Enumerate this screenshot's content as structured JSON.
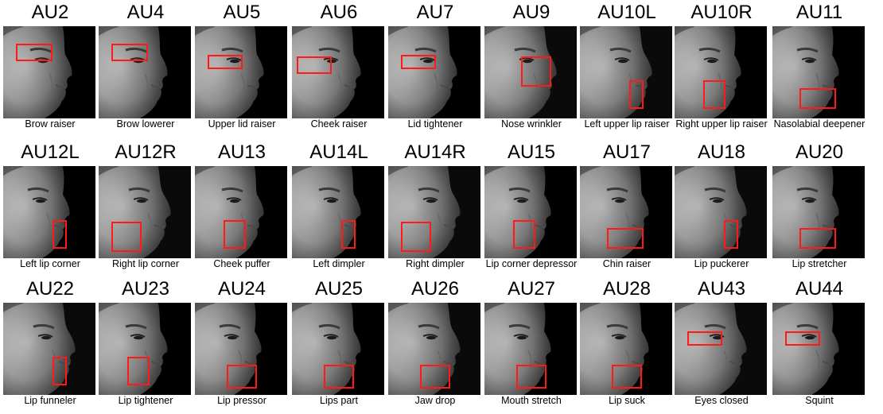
{
  "rows": [
    [
      {
        "au": "AU2",
        "label": "Brow raiser",
        "box": "brow",
        "face": 0
      },
      {
        "au": "AU4",
        "label": "Brow lowerer",
        "box": "brow",
        "face": 0
      },
      {
        "au": "AU5",
        "label": "Upper lid raiser",
        "box": "eye",
        "face": 0
      },
      {
        "au": "AU6",
        "label": "Cheek raiser",
        "box": "cheek",
        "face": 0
      },
      {
        "au": "AU7",
        "label": "Lid tightener",
        "box": "eye",
        "face": 0
      },
      {
        "au": "AU9",
        "label": "Nose wrinkler",
        "box": "nose",
        "face": 1
      },
      {
        "au": "AU10L",
        "label": "Left upper lip raiser",
        "box": "lipL",
        "face": 1
      },
      {
        "au": "AU10R",
        "label": "Right upper lip raiser",
        "box": "lipR",
        "face": 2
      },
      {
        "au": "AU11",
        "label": "Nasolabial deepener",
        "box": "mouthW",
        "face": 2
      }
    ],
    [
      {
        "au": "AU12L",
        "label": "Left lip corner",
        "box": "lipL",
        "face": 2
      },
      {
        "au": "AU12R",
        "label": "Right lip corner",
        "box": "cheekL",
        "face": 1
      },
      {
        "au": "AU13",
        "label": "Cheek puffer",
        "box": "lipR",
        "face": 0
      },
      {
        "au": "AU14L",
        "label": "Left dimpler",
        "box": "lipL",
        "face": 0
      },
      {
        "au": "AU14R",
        "label": "Right dimpler",
        "box": "cheekL",
        "face": 1
      },
      {
        "au": "AU15",
        "label": "Lip corner depressor",
        "box": "lipR",
        "face": 2
      },
      {
        "au": "AU17",
        "label": "Chin raiser",
        "box": "mouthW",
        "face": 0
      },
      {
        "au": "AU18",
        "label": "Lip puckerer",
        "box": "lipL",
        "face": 1
      },
      {
        "au": "AU20",
        "label": "Lip stretcher",
        "box": "mouthW",
        "face": 2
      }
    ],
    [
      {
        "au": "AU22",
        "label": "Lip funneler",
        "box": "lipL",
        "face": 1
      },
      {
        "au": "AU23",
        "label": "Lip tightener",
        "box": "lipR",
        "face": 0
      },
      {
        "au": "AU24",
        "label": "Lip pressor",
        "box": "mouth",
        "face": 2
      },
      {
        "au": "AU25",
        "label": "Lips part",
        "box": "mouth",
        "face": 0
      },
      {
        "au": "AU26",
        "label": "Jaw drop",
        "box": "mouth",
        "face": 1
      },
      {
        "au": "AU27",
        "label": "Mouth stretch",
        "box": "mouth",
        "face": 2
      },
      {
        "au": "AU28",
        "label": "Lip suck",
        "box": "mouth",
        "face": 0
      },
      {
        "au": "AU43",
        "label": "Eyes closed",
        "box": "eye",
        "face": 1
      },
      {
        "au": "AU44",
        "label": "Squint",
        "box": "eye",
        "face": 2
      }
    ]
  ],
  "colors": {
    "box": "#ff1a1a",
    "background": "#000000"
  }
}
